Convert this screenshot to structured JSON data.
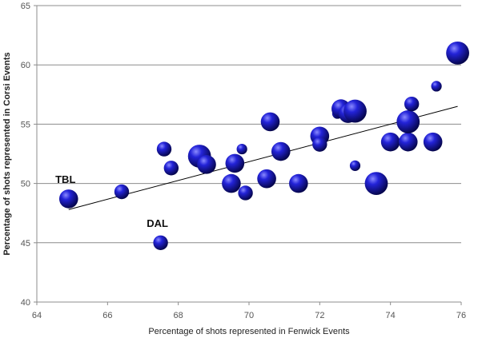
{
  "chart_data": {
    "type": "scatter",
    "xlabel": "Percentage of shots represented in Fenwick Events",
    "ylabel": "Percentage of shots represented in Corsi Events",
    "xlim": [
      64,
      76
    ],
    "ylim": [
      40,
      65
    ],
    "xticks": [
      64,
      66,
      68,
      70,
      72,
      74,
      76
    ],
    "yticks": [
      40,
      45,
      50,
      55,
      60,
      65
    ],
    "grid": "horizontal",
    "marker_color": "#1a1ab4",
    "points": [
      {
        "x": 64.9,
        "y": 48.7,
        "size": 3,
        "label": "TBL"
      },
      {
        "x": 66.4,
        "y": 49.3,
        "size": 2,
        "label": ""
      },
      {
        "x": 67.5,
        "y": 45.0,
        "size": 2,
        "label": "DAL"
      },
      {
        "x": 67.6,
        "y": 52.9,
        "size": 2,
        "label": ""
      },
      {
        "x": 67.8,
        "y": 51.3,
        "size": 2,
        "label": ""
      },
      {
        "x": 68.6,
        "y": 52.3,
        "size": 4,
        "label": ""
      },
      {
        "x": 68.8,
        "y": 51.6,
        "size": 3,
        "label": ""
      },
      {
        "x": 69.5,
        "y": 50.0,
        "size": 3,
        "label": ""
      },
      {
        "x": 69.6,
        "y": 51.7,
        "size": 3,
        "label": ""
      },
      {
        "x": 69.8,
        "y": 52.9,
        "size": 1,
        "label": ""
      },
      {
        "x": 69.9,
        "y": 49.2,
        "size": 2,
        "label": ""
      },
      {
        "x": 70.5,
        "y": 50.4,
        "size": 3,
        "label": ""
      },
      {
        "x": 70.6,
        "y": 55.2,
        "size": 3,
        "label": ""
      },
      {
        "x": 70.9,
        "y": 52.7,
        "size": 3,
        "label": ""
      },
      {
        "x": 71.4,
        "y": 50.0,
        "size": 3,
        "label": ""
      },
      {
        "x": 72.0,
        "y": 54.0,
        "size": 3,
        "label": ""
      },
      {
        "x": 72.0,
        "y": 53.3,
        "size": 2,
        "label": ""
      },
      {
        "x": 72.5,
        "y": 55.9,
        "size": 1,
        "label": ""
      },
      {
        "x": 72.6,
        "y": 56.3,
        "size": 3,
        "label": ""
      },
      {
        "x": 72.8,
        "y": 55.9,
        "size": 3,
        "label": ""
      },
      {
        "x": 73.0,
        "y": 51.5,
        "size": 1,
        "label": ""
      },
      {
        "x": 73.0,
        "y": 56.1,
        "size": 4,
        "label": ""
      },
      {
        "x": 73.6,
        "y": 50.0,
        "size": 4,
        "label": ""
      },
      {
        "x": 74.0,
        "y": 53.5,
        "size": 3,
        "label": ""
      },
      {
        "x": 74.5,
        "y": 53.5,
        "size": 3,
        "label": ""
      },
      {
        "x": 74.5,
        "y": 55.2,
        "size": 4,
        "label": ""
      },
      {
        "x": 74.6,
        "y": 56.7,
        "size": 2,
        "label": ""
      },
      {
        "x": 75.2,
        "y": 53.5,
        "size": 3,
        "label": ""
      },
      {
        "x": 75.3,
        "y": 58.2,
        "size": 1,
        "label": ""
      },
      {
        "x": 75.9,
        "y": 61.0,
        "size": 4,
        "label": ""
      }
    ],
    "trendline": {
      "x": [
        64.9,
        75.9
      ],
      "y": [
        47.8,
        56.5
      ]
    }
  }
}
